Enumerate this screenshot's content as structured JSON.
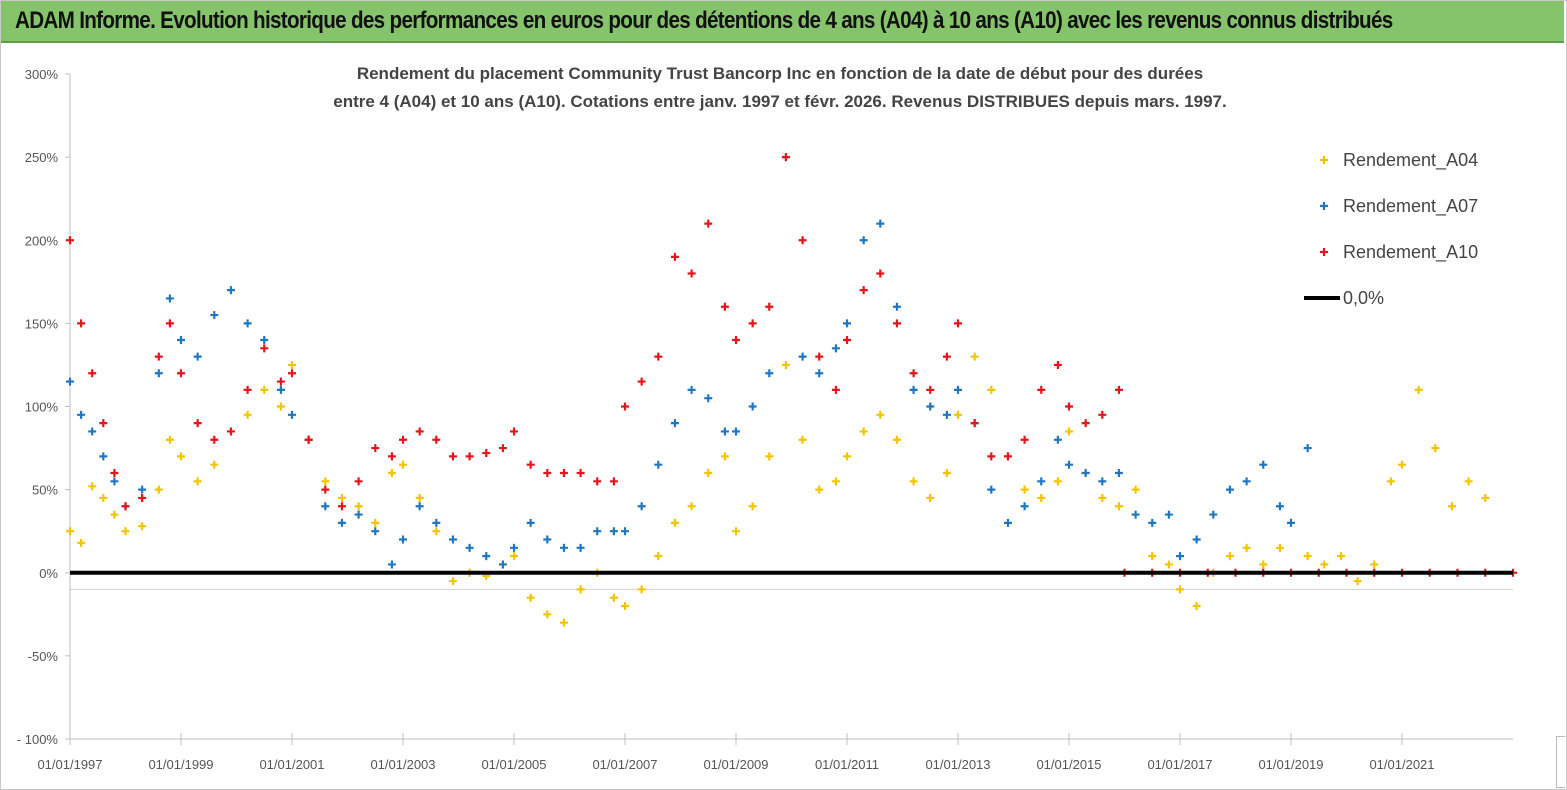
{
  "header": {
    "banner_title": "ADAM Informe. Evolution historique des performances en euros pour des détentions de 4 ans (A04) à 10 ans (A10) avec les revenus connus distribués"
  },
  "colors": {
    "banner": "#86c46b",
    "A04": "#f5c400",
    "A07": "#1f77c4",
    "A10": "#e8141b",
    "zero": "#000000"
  },
  "chart_data": {
    "type": "scatter",
    "title_line1": "Rendement du placement Community Trust Bancorp Inc en fonction de la date de début pour des durées",
    "title_line2": "entre 4 (A04) et 10 ans (A10). Cotations entre janv. 1997 et févr. 2026. Revenus DISTRIBUES depuis mars. 1997.",
    "y_unit": "%",
    "ylim": [
      -100,
      300
    ],
    "xlim": [
      1997.0,
      2023.0
    ],
    "y_ticks": [
      "300%",
      "250%",
      "200%",
      "150%",
      "100%",
      "50%",
      "0%",
      "-50%",
      "- 100%"
    ],
    "y_tick_values": [
      300,
      250,
      200,
      150,
      100,
      50,
      0,
      -50,
      -100
    ],
    "x_ticks": [
      "01/01/1997",
      "01/01/1999",
      "01/01/2001",
      "01/01/2003",
      "01/01/2005",
      "01/01/2007",
      "01/01/2009",
      "01/01/2011",
      "01/01/2013",
      "01/01/2015",
      "01/01/2017",
      "01/01/2019",
      "01/01/2021"
    ],
    "x_tick_values": [
      1997,
      1999,
      2001,
      2003,
      2005,
      2007,
      2009,
      2011,
      2013,
      2015,
      2017,
      2019,
      2021
    ],
    "legend": [
      "Rendement_A04",
      "Rendement_A07",
      "Rendement_A10",
      "0,0%"
    ],
    "series": [
      {
        "name": "Rendement_A04",
        "x": [
          1997.0,
          1997.2,
          1997.4,
          1997.6,
          1997.8,
          1998.0,
          1998.3,
          1998.6,
          1998.8,
          1999.0,
          1999.3,
          1999.6,
          1999.9,
          2000.2,
          2000.5,
          2000.8,
          2001.0,
          2001.3,
          2001.6,
          2001.9,
          2002.2,
          2002.5,
          2002.8,
          2003.0,
          2003.3,
          2003.6,
          2003.9,
          2004.2,
          2004.5,
          2004.8,
          2005.0,
          2005.3,
          2005.6,
          2005.9,
          2006.2,
          2006.5,
          2006.8,
          2007.0,
          2007.3,
          2007.6,
          2007.9,
          2008.2,
          2008.5,
          2008.8,
          2009.0,
          2009.3,
          2009.6,
          2009.9,
          2010.2,
          2010.5,
          2010.8,
          2011.0,
          2011.3,
          2011.6,
          2011.9,
          2012.2,
          2012.5,
          2012.8,
          2013.0,
          2013.3,
          2013.6,
          2013.9,
          2014.2,
          2014.5,
          2014.8,
          2015.0,
          2015.3,
          2015.6,
          2015.9,
          2016.2,
          2016.5,
          2016.8,
          2017.0,
          2017.3,
          2017.6,
          2017.9,
          2018.2,
          2018.5,
          2018.8,
          2019.0,
          2019.3,
          2019.6,
          2019.9,
          2020.2,
          2020.5,
          2020.8,
          2021.0,
          2021.3,
          2021.6,
          2021.9,
          2022.2,
          2022.5
        ],
        "y": [
          25,
          18,
          52,
          45,
          35,
          25,
          28,
          50,
          80,
          70,
          55,
          65,
          85,
          95,
          110,
          100,
          125,
          80,
          55,
          45,
          40,
          30,
          60,
          65,
          45,
          25,
          -5,
          0,
          -2,
          5,
          10,
          -15,
          -25,
          -30,
          -10,
          0,
          -15,
          -20,
          -10,
          10,
          30,
          40,
          60,
          70,
          25,
          40,
          70,
          125,
          80,
          50,
          55,
          70,
          85,
          95,
          80,
          55,
          45,
          60,
          95,
          130,
          110,
          70,
          50,
          45,
          55,
          85,
          60,
          45,
          40,
          50,
          10,
          5,
          -10,
          -20,
          0,
          10,
          15,
          5,
          15,
          30,
          10,
          5,
          10,
          -5,
          5,
          55,
          65,
          110,
          75,
          40,
          55,
          45
        ]
      },
      {
        "name": "Rendement_A07",
        "x": [
          1997.0,
          1997.2,
          1997.4,
          1997.6,
          1997.8,
          1998.0,
          1998.3,
          1998.6,
          1998.8,
          1999.0,
          1999.3,
          1999.6,
          1999.9,
          2000.2,
          2000.5,
          2000.8,
          2001.0,
          2001.3,
          2001.6,
          2001.9,
          2002.2,
          2002.5,
          2002.8,
          2003.0,
          2003.3,
          2003.6,
          2003.9,
          2004.2,
          2004.5,
          2004.8,
          2005.0,
          2005.3,
          2005.6,
          2005.9,
          2006.2,
          2006.5,
          2006.8,
          2007.0,
          2007.3,
          2007.6,
          2007.9,
          2008.2,
          2008.5,
          2008.8,
          2009.0,
          2009.3,
          2009.6,
          2009.9,
          2010.2,
          2010.5,
          2010.8,
          2011.0,
          2011.3,
          2011.6,
          2011.9,
          2012.2,
          2012.5,
          2012.8,
          2013.0,
          2013.3,
          2013.6,
          2013.9,
          2014.2,
          2014.5,
          2014.8,
          2015.0,
          2015.3,
          2015.6,
          2015.9,
          2016.2,
          2016.5,
          2016.8,
          2017.0,
          2017.3,
          2017.6,
          2017.9,
          2018.2,
          2018.5,
          2018.8,
          2019.0,
          2019.3
        ],
        "y": [
          115,
          95,
          85,
          70,
          55,
          40,
          50,
          120,
          165,
          140,
          130,
          155,
          170,
          150,
          140,
          110,
          95,
          80,
          40,
          30,
          35,
          25,
          5,
          20,
          40,
          30,
          20,
          15,
          10,
          5,
          15,
          30,
          20,
          15,
          15,
          25,
          25,
          25,
          40,
          65,
          90,
          110,
          105,
          85,
          85,
          100,
          120,
          250,
          130,
          120,
          135,
          150,
          200,
          210,
          160,
          110,
          100,
          95,
          110,
          90,
          50,
          30,
          40,
          55,
          80,
          65,
          60,
          55,
          60,
          35,
          30,
          35,
          10,
          20,
          35,
          50,
          55,
          65,
          40,
          30,
          75
        ]
      },
      {
        "name": "Rendement_A10",
        "x": [
          1997.0,
          1997.2,
          1997.4,
          1997.6,
          1997.8,
          1998.0,
          1998.3,
          1998.6,
          1998.8,
          1999.0,
          1999.3,
          1999.6,
          1999.9,
          2000.2,
          2000.5,
          2000.8,
          2001.0,
          2001.3,
          2001.6,
          2001.9,
          2002.2,
          2002.5,
          2002.8,
          2003.0,
          2003.3,
          2003.6,
          2003.9,
          2004.2,
          2004.5,
          2004.8,
          2005.0,
          2005.3,
          2005.6,
          2005.9,
          2006.2,
          2006.5,
          2006.8,
          2007.0,
          2007.3,
          2007.6,
          2007.9,
          2008.2,
          2008.5,
          2008.8,
          2009.0,
          2009.3,
          2009.6,
          2009.9,
          2010.2,
          2010.5,
          2010.8,
          2011.0,
          2011.3,
          2011.6,
          2011.9,
          2012.2,
          2012.5,
          2012.8,
          2013.0,
          2013.3,
          2013.6,
          2013.9,
          2014.2,
          2014.5,
          2014.8,
          2015.0,
          2015.3,
          2015.6,
          2015.9,
          2016.0,
          2016.5,
          2017.0,
          2017.5,
          2018.0,
          2018.5,
          2019.0,
          2019.5,
          2020.0,
          2020.5,
          2021.0,
          2021.5,
          2022.0,
          2022.5,
          2023.0
        ],
        "y": [
          200,
          150,
          120,
          90,
          60,
          40,
          45,
          130,
          150,
          120,
          90,
          80,
          85,
          110,
          135,
          115,
          120,
          80,
          50,
          40,
          55,
          75,
          70,
          80,
          85,
          80,
          70,
          70,
          72,
          75,
          85,
          65,
          60,
          60,
          60,
          55,
          55,
          100,
          115,
          130,
          190,
          180,
          210,
          160,
          140,
          150,
          160,
          250,
          200,
          130,
          110,
          140,
          170,
          180,
          150,
          120,
          110,
          130,
          150,
          90,
          70,
          70,
          80,
          110,
          125,
          100,
          90,
          95,
          110,
          0,
          0,
          0,
          0,
          0,
          0,
          0,
          0,
          0,
          0,
          0,
          0,
          0,
          0,
          0
        ]
      }
    ]
  }
}
